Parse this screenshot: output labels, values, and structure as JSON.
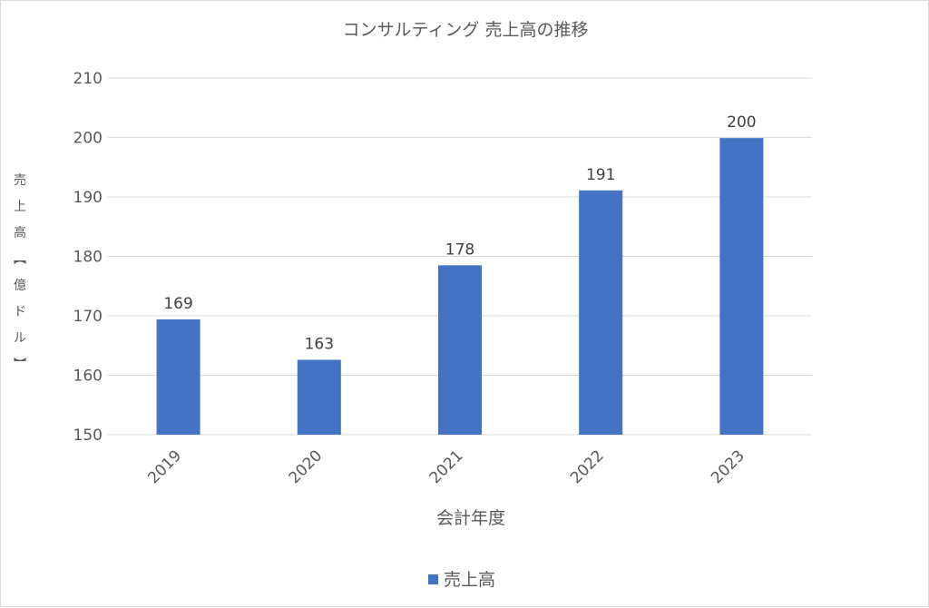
{
  "chart_data": {
    "type": "bar",
    "title": "コンサルティング 売上高の推移",
    "xlabel": "会計年度",
    "ylabel": "売上高 【億ドル】",
    "categories": [
      "2019",
      "2020",
      "2021",
      "2022",
      "2023"
    ],
    "series": [
      {
        "name": "売上高",
        "values": [
          169.4,
          162.6,
          178.5,
          191.1,
          199.9
        ],
        "color": "#4472C4"
      }
    ],
    "data_labels": [
      "169",
      "163",
      "178",
      "191",
      "200"
    ],
    "ylim": [
      150,
      210
    ],
    "yticks": [
      150,
      160,
      170,
      180,
      190,
      200,
      210
    ],
    "grid": true,
    "legend_position": "bottom"
  }
}
